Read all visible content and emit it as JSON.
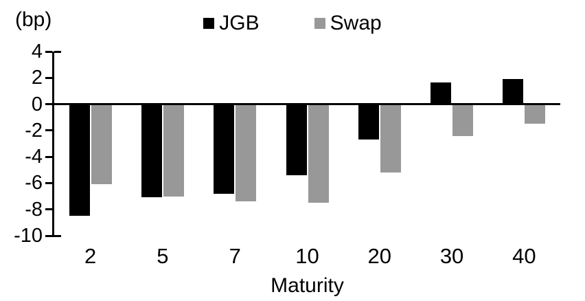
{
  "chart_data": {
    "type": "bar",
    "categories": [
      "2",
      "5",
      "7",
      "10",
      "20",
      "30",
      "40"
    ],
    "series": [
      {
        "name": "JGB",
        "color": "#000000",
        "values": [
          -8.5,
          -7.1,
          -6.8,
          -5.4,
          -2.7,
          1.65,
          1.9
        ]
      },
      {
        "name": "Swap",
        "color": "#989898",
        "values": [
          -6.1,
          -7.0,
          -7.4,
          -7.5,
          -5.2,
          -2.4,
          -1.5
        ]
      }
    ],
    "xlabel": "Maturity",
    "ylabel": "(bp)",
    "ylim": [
      -10,
      4
    ],
    "yticks": [
      4,
      2,
      0,
      -2,
      -4,
      -6,
      -8,
      -10
    ],
    "legend_position": "top-center",
    "grid": false,
    "baseline": 0
  }
}
